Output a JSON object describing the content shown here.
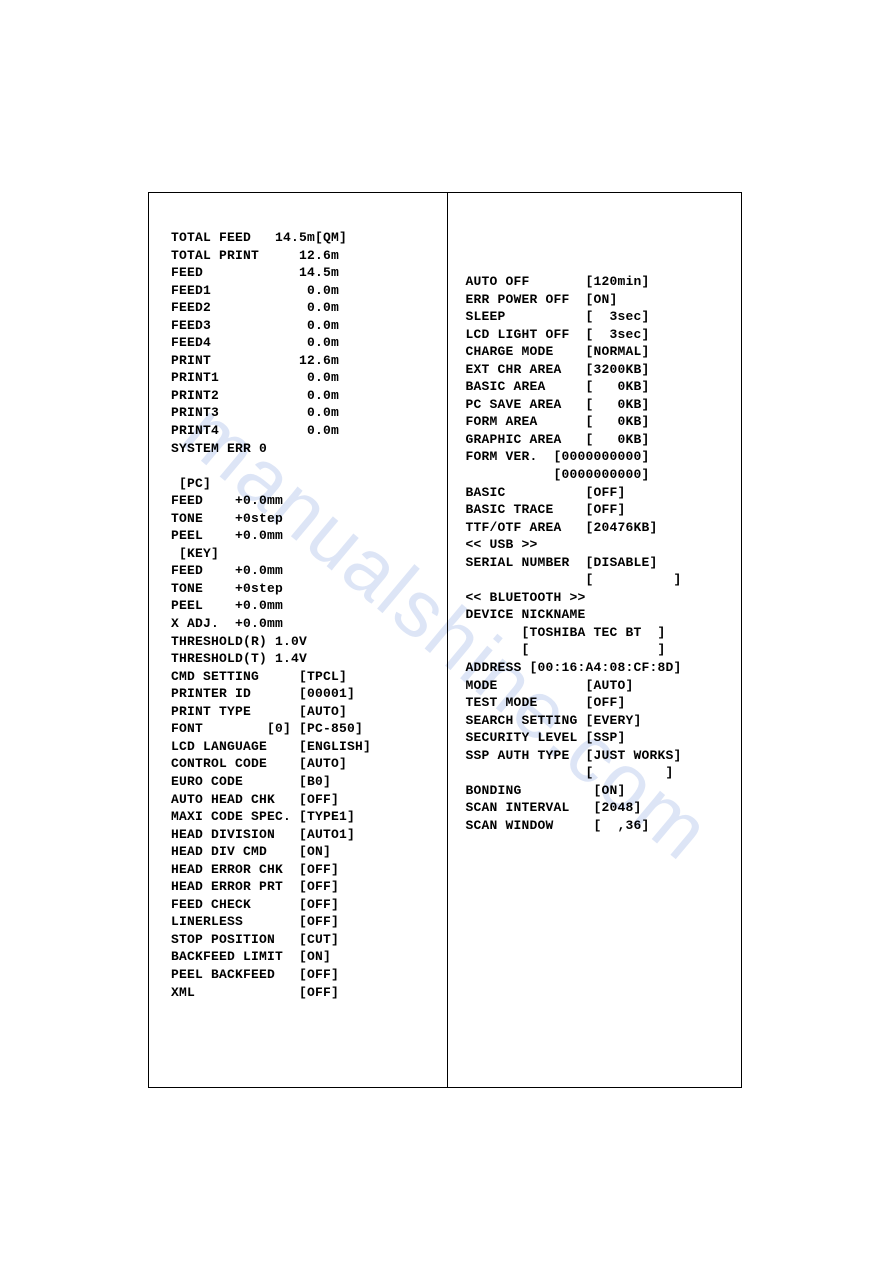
{
  "watermark": "manualshine.com",
  "left": {
    "feed_section": [
      {
        "label": "TOTAL FEED",
        "value": "14.5m[QM]"
      },
      {
        "label": "TOTAL PRINT",
        "value": "12.6m"
      },
      {
        "label": "FEED",
        "value": "14.5m"
      },
      {
        "label": "FEED1",
        "value": " 0.0m"
      },
      {
        "label": "FEED2",
        "value": " 0.0m"
      },
      {
        "label": "FEED3",
        "value": " 0.0m"
      },
      {
        "label": "FEED4",
        "value": " 0.0m"
      },
      {
        "label": "PRINT",
        "value": "12.6m"
      },
      {
        "label": "PRINT1",
        "value": " 0.0m"
      },
      {
        "label": "PRINT2",
        "value": " 0.0m"
      },
      {
        "label": "PRINT3",
        "value": " 0.0m"
      },
      {
        "label": "PRINT4",
        "value": " 0.0m"
      }
    ],
    "system_err": "SYSTEM ERR 0",
    "pc_header": " [PC]",
    "pc_rows": [
      {
        "label": "FEED",
        "value": "+0.0mm"
      },
      {
        "label": "TONE",
        "value": "+0step"
      },
      {
        "label": "PEEL",
        "value": "+0.0mm"
      }
    ],
    "key_header": " [KEY]",
    "key_rows": [
      {
        "label": "FEED",
        "value": "+0.0mm"
      },
      {
        "label": "TONE",
        "value": "+0step"
      },
      {
        "label": "PEEL",
        "value": "+0.0mm"
      },
      {
        "label": "X ADJ.",
        "value": "+0.0mm"
      }
    ],
    "threshold_r": "THRESHOLD(R) 1.0V",
    "threshold_t": "THRESHOLD(T) 1.4V",
    "settings": [
      {
        "label": "CMD SETTING",
        "value": "[TPCL]"
      },
      {
        "label": "PRINTER ID",
        "value": "[00001]"
      },
      {
        "label": "PRINT TYPE",
        "value": "[AUTO]"
      },
      {
        "label": "FONT        [0]",
        "value": "[PC-850]"
      },
      {
        "label": "LCD LANGUAGE",
        "value": "[ENGLISH]"
      },
      {
        "label": "CONTROL CODE",
        "value": "[AUTO]"
      },
      {
        "label": "EURO CODE",
        "value": "[B0]"
      },
      {
        "label": "AUTO HEAD CHK",
        "value": "[OFF]"
      },
      {
        "label": "MAXI CODE SPEC.",
        "value": "[TYPE1]"
      },
      {
        "label": "HEAD DIVISION",
        "value": "[AUTO1]"
      },
      {
        "label": "HEAD DIV CMD",
        "value": "[ON]"
      },
      {
        "label": "HEAD ERROR CHK",
        "value": "[OFF]"
      },
      {
        "label": "HEAD ERROR PRT",
        "value": "[OFF]"
      },
      {
        "label": "FEED CHECK",
        "value": "[OFF]"
      },
      {
        "label": "LINERLESS",
        "value": "[OFF]"
      },
      {
        "label": "STOP POSITION",
        "value": "[CUT]"
      },
      {
        "label": "BACKFEED LIMIT",
        "value": "[ON]"
      },
      {
        "label": "PEEL BACKFEED",
        "value": "[OFF]"
      },
      {
        "label": "XML",
        "value": "[OFF]"
      }
    ]
  },
  "right": {
    "settings1": [
      {
        "label": "AUTO OFF",
        "value": "[120min]"
      },
      {
        "label": "ERR POWER OFF",
        "value": "[ON]"
      },
      {
        "label": "SLEEP",
        "value": "[  3sec]"
      },
      {
        "label": "LCD LIGHT OFF",
        "value": "[  3sec]"
      },
      {
        "label": "CHARGE MODE",
        "value": "[NORMAL]"
      },
      {
        "label": "EXT CHR AREA",
        "value": "[3200KB]"
      },
      {
        "label": "BASIC AREA",
        "value": "[   0KB]"
      },
      {
        "label": "PC SAVE AREA",
        "value": "[   0KB]"
      },
      {
        "label": "FORM AREA",
        "value": "[   0KB]"
      },
      {
        "label": "GRAPHIC AREA",
        "value": "[   0KB]"
      }
    ],
    "form_ver_label": "FORM VER.",
    "form_ver_1": "[0000000000]",
    "form_ver_2": "[0000000000]",
    "settings2": [
      {
        "label": "BASIC",
        "value": "[OFF]"
      },
      {
        "label": "BASIC TRACE",
        "value": "[OFF]"
      },
      {
        "label": "TTF/OTF AREA",
        "value": "[20476KB]"
      }
    ],
    "usb_header": "<< USB >>",
    "serial_number_label": "SERIAL NUMBER",
    "serial_number_value": "[DISABLE]",
    "serial_number_blank": "[          ]",
    "bt_header": "<< BLUETOOTH >>",
    "device_nickname_label": "DEVICE NICKNAME",
    "device_nickname_value": "[TOSHIBA TEC BT  ]",
    "device_nickname_blank": "[                ]",
    "address_label": "ADDRESS",
    "address_value": "[00:16:A4:08:CF:8D]",
    "settings3": [
      {
        "label": "MODE",
        "value": "[AUTO]"
      },
      {
        "label": "TEST MODE",
        "value": "[OFF]"
      },
      {
        "label": "SEARCH SETTING",
        "value": "[EVERY]"
      },
      {
        "label": "SECURITY LEVEL",
        "value": "[SSP]"
      },
      {
        "label": "SSP AUTH TYPE",
        "value": "[JUST WORKS]"
      }
    ],
    "ssp_blank": "[         ]",
    "settings4": [
      {
        "label": "BONDING",
        "value": "[ON]"
      },
      {
        "label": "SCAN INTERVAL",
        "value": "[2048]"
      },
      {
        "label": "SCAN WINDOW",
        "value": "[  ,36]"
      }
    ]
  }
}
